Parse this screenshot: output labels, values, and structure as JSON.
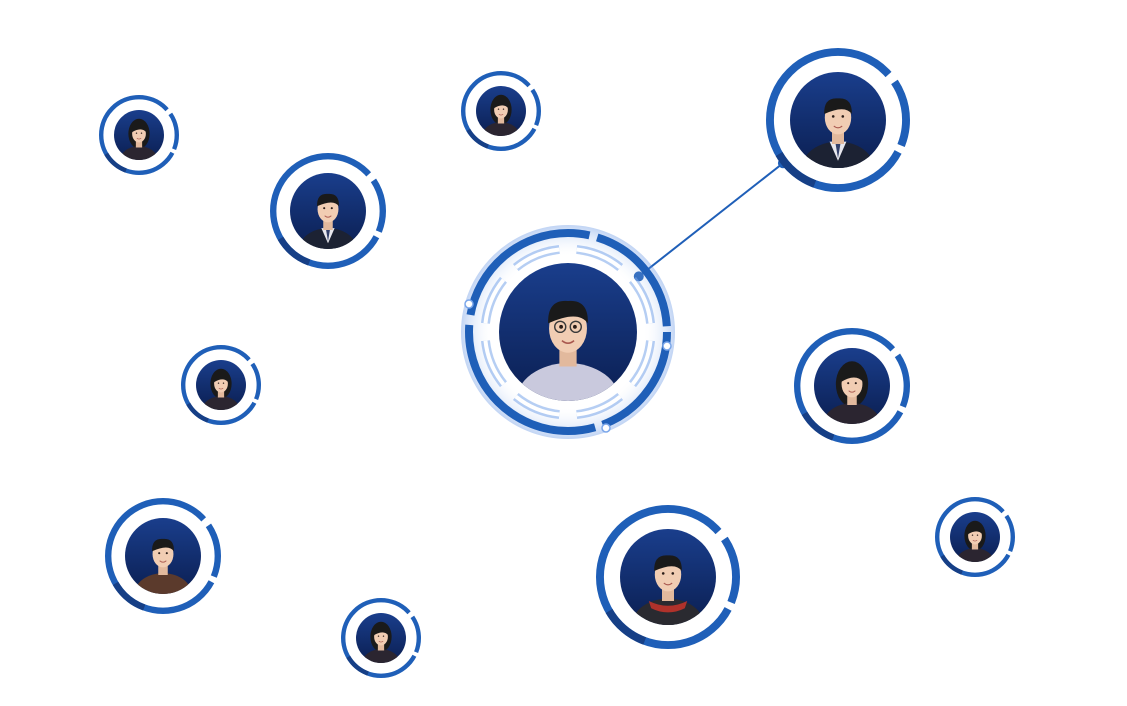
{
  "colors": {
    "ring": "#1f5fb8",
    "ring_dark": "#163f86",
    "ring_light": "#7aa6ea",
    "portrait_bg_top": "#1a3e8c",
    "portrait_bg_bottom": "#0b1f52",
    "skin": "#f1cdb3",
    "hair": "#1a1a1a",
    "suit": "#1c2233",
    "shirt_light": "#c9c9dd",
    "brown_shirt": "#5b3a2c",
    "red_collar": "#b0322b",
    "connector": "#1f5fb8"
  },
  "center_node": {
    "avatar": "man-glasses-portrait"
  },
  "nodes": [
    {
      "avatar": "woman-portrait"
    },
    {
      "avatar": "man-suit-portrait"
    },
    {
      "avatar": "woman-portrait"
    },
    {
      "avatar": "man-suit-portrait"
    },
    {
      "avatar": "woman-portrait"
    },
    {
      "avatar": "woman-long-hair-portrait"
    },
    {
      "avatar": "man-casual-portrait"
    },
    {
      "avatar": "woman-portrait"
    },
    {
      "avatar": "man-dark-shirt-portrait"
    },
    {
      "avatar": "woman-portrait"
    }
  ],
  "connections": [
    {
      "from": "center",
      "to": 3
    }
  ]
}
